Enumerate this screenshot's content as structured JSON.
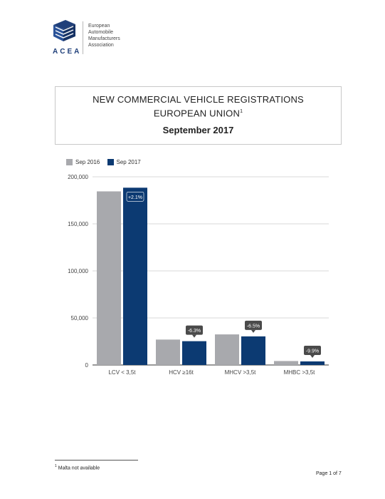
{
  "logo": {
    "acronym": "ACEA",
    "lines": [
      "European",
      "Automobile",
      "Manufacturers",
      "Association"
    ],
    "color": "#1f3f7a"
  },
  "title": {
    "line1": "NEW COMMERCIAL VEHICLE REGISTRATIONS",
    "line2": "EUROPEAN UNION",
    "line2_sup": "1",
    "date": "September 2017"
  },
  "chart_data": {
    "type": "bar",
    "categories": [
      "LCV < 3,5t",
      "HCV ≥16t",
      "MHCV >3,5t",
      "MHBC >3,5t"
    ],
    "series": [
      {
        "name": "Sep 2016",
        "color": "#a8a9ad",
        "values": [
          184500,
          27000,
          32500,
          4200
        ]
      },
      {
        "name": "Sep 2017",
        "color": "#0c3a72",
        "values": [
          188400,
          25300,
          30400,
          3800
        ]
      }
    ],
    "change_labels": [
      "+2.1%",
      "-6.3%",
      "-6.5%",
      "-9.9%"
    ],
    "ylim": [
      0,
      200000
    ],
    "yticks": [
      0,
      50000,
      100000,
      150000,
      200000
    ],
    "ytick_labels": [
      "0",
      "50,000",
      "100,000",
      "150,000",
      "200,000"
    ],
    "grid": true,
    "legend_position": "top-left"
  },
  "footer": {
    "footnote_num": "1",
    "footnote_text": "Malta not available",
    "page": "Page 1 of 7"
  }
}
